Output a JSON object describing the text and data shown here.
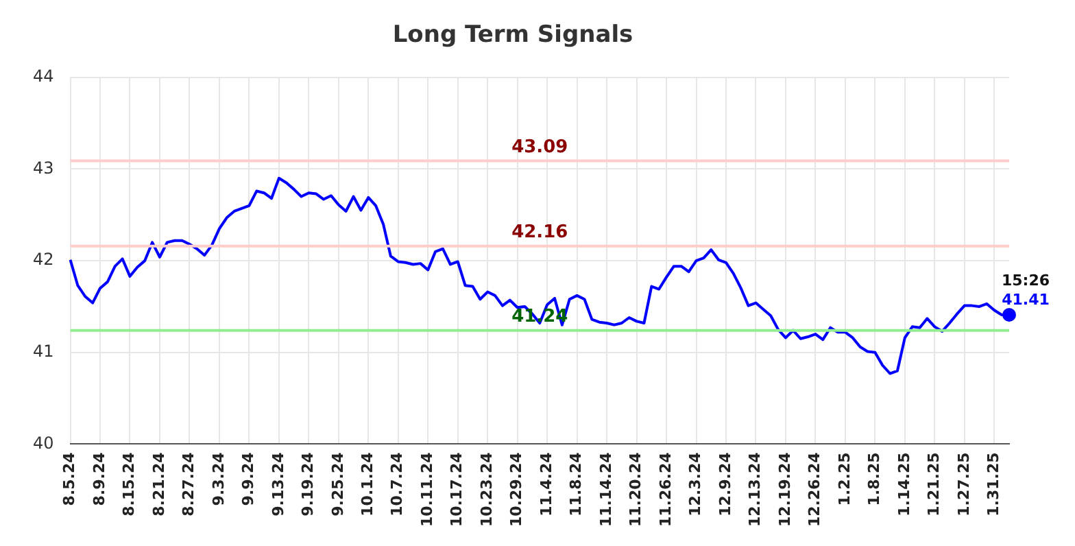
{
  "chart_data": {
    "type": "line",
    "title": "Long Term Signals",
    "categories": [
      "8.5.24",
      null,
      null,
      null,
      "8.9.24",
      null,
      null,
      null,
      "8.15.24",
      null,
      null,
      null,
      "8.21.24",
      null,
      null,
      null,
      "8.27.24",
      null,
      null,
      null,
      "9.3.24",
      null,
      null,
      null,
      "9.9.24",
      null,
      null,
      null,
      "9.13.24",
      null,
      null,
      null,
      "9.19.24",
      null,
      null,
      null,
      "9.25.24",
      null,
      null,
      null,
      "10.1.24",
      null,
      null,
      null,
      "10.7.24",
      null,
      null,
      null,
      "10.11.24",
      null,
      null,
      null,
      "10.17.24",
      null,
      null,
      null,
      "10.23.24",
      null,
      null,
      null,
      "10.29.24",
      null,
      null,
      null,
      "11.4.24",
      null,
      null,
      null,
      "11.8.24",
      null,
      null,
      null,
      "11.14.24",
      null,
      null,
      null,
      "11.20.24",
      null,
      null,
      null,
      "11.26.24",
      null,
      null,
      null,
      "12.3.24",
      null,
      null,
      null,
      "12.9.24",
      null,
      null,
      null,
      "12.13.24",
      null,
      null,
      null,
      "12.19.24",
      null,
      null,
      null,
      "12.26.24",
      null,
      null,
      null,
      "1.2.25",
      null,
      null,
      null,
      "1.8.25",
      null,
      null,
      null,
      "1.14.25",
      null,
      null,
      null,
      "1.21.25",
      null,
      null,
      null,
      "1.27.25",
      null,
      null,
      null,
      "1.31.25",
      null,
      null
    ],
    "series": [
      {
        "type": "line",
        "color": "#0000ff",
        "marker": "none",
        "values": [
          42.01,
          41.73,
          41.61,
          41.54,
          41.7,
          41.77,
          41.94,
          42.02,
          41.83,
          41.93,
          42.0,
          42.2,
          42.04,
          42.2,
          42.22,
          42.22,
          42.18,
          42.13,
          42.06,
          42.17,
          42.35,
          42.47,
          42.54,
          42.57,
          42.6,
          42.76,
          42.74,
          42.68,
          42.9,
          42.85,
          42.78,
          42.7,
          42.74,
          42.73,
          42.67,
          42.71,
          42.61,
          42.54,
          42.7,
          42.55,
          42.69,
          42.6,
          42.4,
          42.05,
          41.99,
          41.98,
          41.96,
          41.97,
          41.9,
          42.1,
          42.13,
          41.96,
          41.99,
          41.73,
          41.72,
          41.58,
          41.66,
          41.62,
          41.51,
          41.57,
          41.49,
          41.5,
          41.42,
          41.32,
          41.52,
          41.59,
          41.3,
          41.58,
          41.62,
          41.58,
          41.36,
          41.33,
          41.32,
          41.3,
          41.32,
          41.38,
          41.34,
          41.32,
          41.72,
          41.69,
          41.82,
          41.94,
          41.94,
          41.88,
          42.0,
          42.03,
          42.12,
          42.01,
          41.98,
          41.86,
          41.7,
          41.51,
          41.54,
          41.47,
          41.4,
          41.25,
          41.16,
          41.24,
          41.15,
          41.17,
          41.2,
          41.14,
          41.27,
          41.22,
          41.22,
          41.16,
          41.06,
          41.01,
          41.0,
          40.86,
          40.77,
          40.8,
          41.16,
          41.28,
          41.27,
          41.37,
          41.28,
          41.23,
          41.32,
          41.42,
          41.51,
          41.51,
          41.5,
          41.53,
          41.46,
          41.41,
          41.41
        ]
      },
      {
        "type": "scatter",
        "color": "#0000ff",
        "marker": "circle",
        "values": [
          null,
          null,
          null,
          null,
          null,
          null,
          null,
          null,
          null,
          null,
          null,
          null,
          null,
          null,
          null,
          null,
          null,
          null,
          null,
          null,
          null,
          null,
          null,
          null,
          null,
          null,
          null,
          null,
          null,
          null,
          null,
          null,
          null,
          null,
          null,
          null,
          null,
          null,
          null,
          null,
          null,
          null,
          null,
          null,
          null,
          null,
          null,
          null,
          null,
          null,
          null,
          null,
          null,
          null,
          null,
          null,
          null,
          null,
          null,
          null,
          null,
          null,
          null,
          null,
          null,
          null,
          null,
          null,
          null,
          null,
          null,
          null,
          null,
          null,
          null,
          null,
          null,
          null,
          null,
          null,
          null,
          null,
          null,
          null,
          null,
          null,
          null,
          null,
          null,
          null,
          null,
          null,
          null,
          null,
          null,
          null,
          null,
          null,
          null,
          null,
          null,
          null,
          null,
          null,
          null,
          null,
          null,
          null,
          null,
          null,
          null,
          null,
          null,
          null,
          null,
          null,
          null,
          null,
          null,
          null,
          null,
          null,
          null,
          null,
          null,
          null,
          41.41
        ],
        "value_labels": [
          null,
          null,
          null,
          null,
          null,
          null,
          null,
          null,
          null,
          null,
          null,
          null,
          null,
          null,
          null,
          null,
          null,
          null,
          null,
          null,
          null,
          null,
          null,
          null,
          null,
          null,
          null,
          null,
          null,
          null,
          null,
          null,
          null,
          null,
          null,
          null,
          null,
          null,
          null,
          null,
          null,
          null,
          null,
          null,
          null,
          null,
          null,
          null,
          null,
          null,
          null,
          null,
          null,
          null,
          null,
          null,
          null,
          null,
          null,
          null,
          null,
          null,
          null,
          null,
          null,
          null,
          null,
          null,
          null,
          null,
          null,
          null,
          null,
          null,
          null,
          null,
          null,
          null,
          null,
          null,
          null,
          null,
          null,
          null,
          null,
          null,
          null,
          null,
          null,
          null,
          null,
          null,
          null,
          null,
          null,
          null,
          null,
          null,
          null,
          null,
          null,
          null,
          null,
          null,
          null,
          null,
          null,
          null,
          null,
          null,
          null,
          null,
          null,
          null,
          null,
          null,
          null,
          null,
          null,
          null,
          null,
          null,
          null,
          null,
          null,
          null,
          "41.41"
        ]
      }
    ],
    "ylim": [
      40,
      44
    ],
    "yticks": [
      40,
      41,
      42,
      43,
      44
    ],
    "grid": true,
    "legend": false,
    "ref_lines": [
      {
        "axis": "y",
        "value": 43.09,
        "label": "43.09",
        "color": "#ffcccc"
      },
      {
        "axis": "y",
        "value": 42.16,
        "label": "42.16",
        "color": "#ffcccc"
      },
      {
        "axis": "y",
        "value": 41.24,
        "label": "41.24",
        "color": "#90ee90"
      }
    ],
    "annotations": [
      "15:26"
    ]
  }
}
